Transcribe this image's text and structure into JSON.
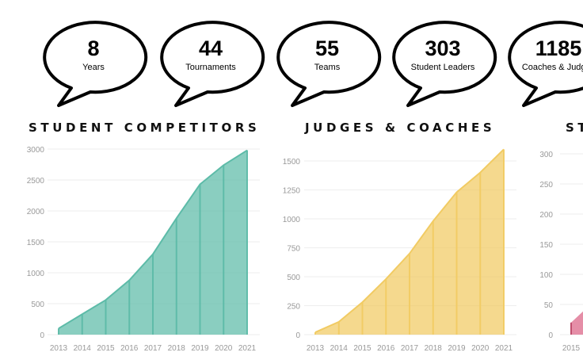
{
  "stats": [
    {
      "value": "8",
      "label": "Years"
    },
    {
      "value": "44",
      "label": "Tournaments"
    },
    {
      "value": "55",
      "label": "Teams"
    },
    {
      "value": "303",
      "label": "Student Leaders"
    },
    {
      "value": "1185",
      "label": "Coaches & Judges"
    }
  ],
  "colors": {
    "competitors": "#5dbba8",
    "judges": "#f1cb63",
    "third": "#e07a98"
  },
  "chart_data": [
    {
      "type": "area",
      "title": "STUDENT COMPETITORS",
      "x": [
        "2013",
        "2014",
        "2015",
        "2016",
        "2017",
        "2018",
        "2019",
        "2020",
        "2021"
      ],
      "series": [
        {
          "values": [
            100,
            330,
            560,
            880,
            1300,
            1880,
            2430,
            2740,
            2980
          ]
        }
      ],
      "ylim": [
        0,
        3000
      ],
      "yticks": [
        "0",
        "500",
        "1000",
        "1500",
        "2000",
        "2500",
        "3000"
      ],
      "grid": true
    },
    {
      "type": "area",
      "title": "JUDGES & COACHES",
      "x": [
        "2013",
        "2014",
        "2015",
        "2016",
        "2017",
        "2018",
        "2019",
        "2020",
        "2021"
      ],
      "series": [
        {
          "values": [
            20,
            110,
            280,
            480,
            700,
            980,
            1230,
            1400,
            1600
          ]
        }
      ],
      "ylim": [
        0,
        1500
      ],
      "yticks": [
        "0",
        "250",
        "500",
        "750",
        "1000",
        "1250",
        "1500"
      ],
      "grid": true
    },
    {
      "type": "area",
      "title": "ST",
      "x": [
        "2015"
      ],
      "series": [
        {
          "values": [
            20
          ]
        }
      ],
      "ylim": [
        0,
        300
      ],
      "yticks": [
        "0",
        "50",
        "100",
        "150",
        "200",
        "250",
        "300"
      ],
      "grid": true
    }
  ]
}
